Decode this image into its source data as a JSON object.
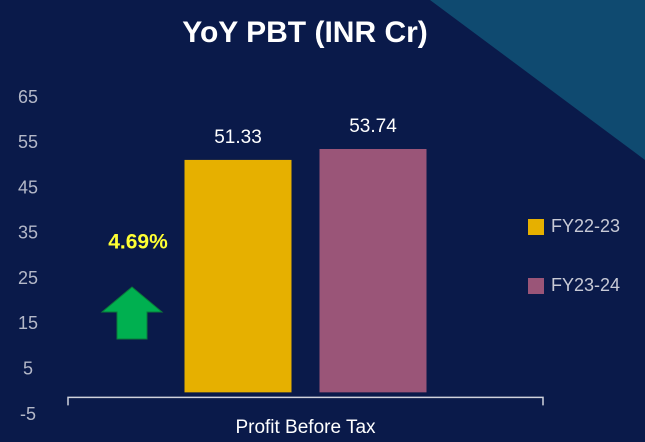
{
  "chart_data": {
    "type": "bar",
    "title": "YoY PBT (INR Cr)",
    "categories": [
      "Profit Before Tax"
    ],
    "series": [
      {
        "name": "FY22-23",
        "color": "#e6b000",
        "values": [
          51.33
        ]
      },
      {
        "name": "FY23-24",
        "color": "#9a5578",
        "values": [
          53.74
        ]
      }
    ],
    "annotation": "4.69%",
    "ylim": [
      -5,
      65
    ],
    "yticks": [
      -5,
      5,
      15,
      25,
      35,
      45,
      55,
      65
    ],
    "grid": false,
    "legend": "right"
  }
}
